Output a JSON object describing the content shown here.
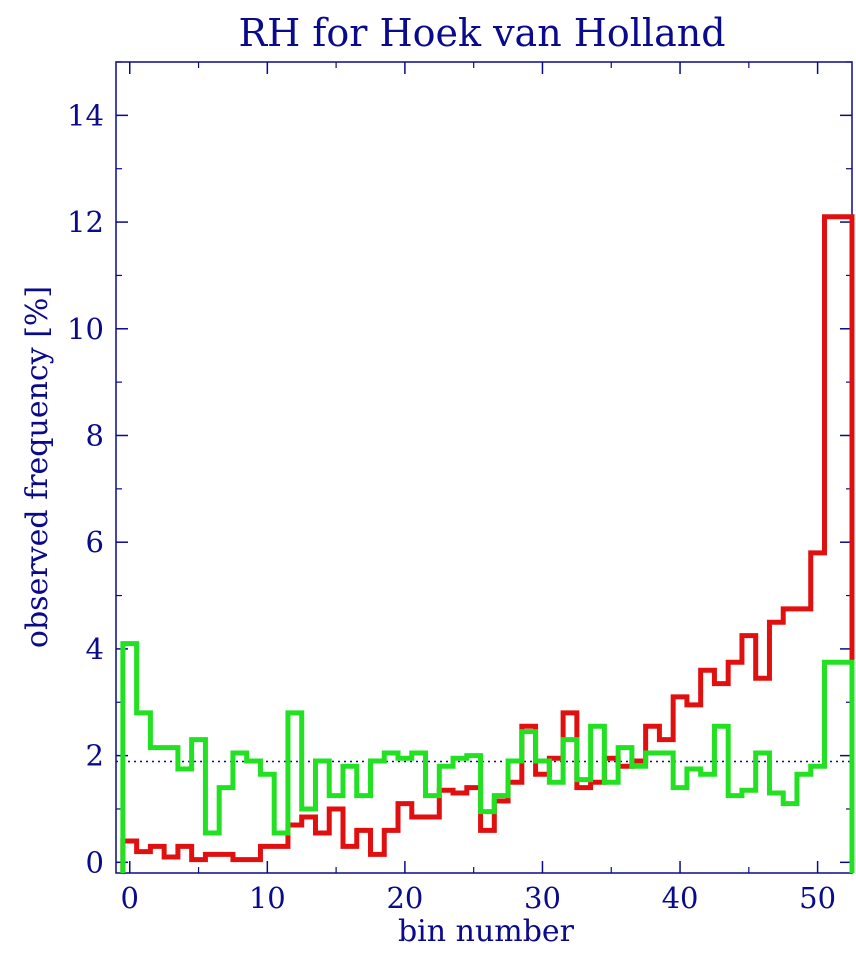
{
  "chart_data": {
    "type": "line",
    "title": "RH for Hoek van Holland",
    "xlabel": "bin number",
    "ylabel": "observed frequency [%]",
    "xlim": [
      -1,
      52.5
    ],
    "ylim": [
      -0.2,
      15
    ],
    "xticks": [
      0,
      10,
      20,
      30,
      40,
      50
    ],
    "yticks": [
      0,
      2,
      4,
      6,
      8,
      10,
      12,
      14
    ],
    "grid": false,
    "legend": false,
    "reference_line": {
      "y": 1.89,
      "style": "dotted",
      "color": "#0a0a8c"
    },
    "series": [
      {
        "color": "#e01010",
        "step": true,
        "x": [
          0,
          1,
          2,
          3,
          4,
          5,
          6,
          7,
          8,
          9,
          10,
          11,
          12,
          13,
          14,
          15,
          16,
          17,
          18,
          19,
          20,
          21,
          22,
          23,
          24,
          25,
          26,
          27,
          28,
          29,
          30,
          31,
          32,
          33,
          34,
          35,
          36,
          37,
          38,
          39,
          40,
          41,
          42,
          43,
          44,
          45,
          46,
          47,
          48,
          49,
          50,
          51,
          52
        ],
        "values": [
          0.4,
          0.2,
          0.3,
          0.1,
          0.3,
          0.05,
          0.15,
          0.15,
          0.05,
          0.05,
          0.3,
          0.3,
          0.7,
          0.85,
          0.55,
          1.0,
          0.3,
          0.6,
          0.15,
          0.6,
          1.1,
          0.85,
          0.85,
          1.35,
          1.3,
          1.4,
          0.6,
          1.15,
          1.5,
          2.55,
          1.65,
          1.95,
          2.8,
          1.4,
          1.5,
          1.95,
          1.8,
          1.9,
          2.55,
          2.3,
          3.1,
          2.95,
          3.6,
          3.35,
          3.75,
          4.25,
          3.45,
          4.5,
          4.75,
          4.75,
          5.8,
          12.1,
          12.1
        ]
      },
      {
        "color": "#22e022",
        "step": true,
        "x": [
          0,
          1,
          2,
          3,
          4,
          5,
          6,
          7,
          8,
          9,
          10,
          11,
          12,
          13,
          14,
          15,
          16,
          17,
          18,
          19,
          20,
          21,
          22,
          23,
          24,
          25,
          26,
          27,
          28,
          29,
          30,
          31,
          32,
          33,
          34,
          35,
          36,
          37,
          38,
          39,
          40,
          41,
          42,
          43,
          44,
          45,
          46,
          47,
          48,
          49,
          50,
          51,
          52
        ],
        "values": [
          4.1,
          2.8,
          2.15,
          2.15,
          1.75,
          2.3,
          0.55,
          1.4,
          2.05,
          1.9,
          1.65,
          0.55,
          2.8,
          1.0,
          1.9,
          1.25,
          1.8,
          1.25,
          1.9,
          2.05,
          1.95,
          2.05,
          1.25,
          1.8,
          1.95,
          2.0,
          0.95,
          1.25,
          1.9,
          2.45,
          1.9,
          1.5,
          2.3,
          1.55,
          2.55,
          1.5,
          2.15,
          1.8,
          2.05,
          2.05,
          1.4,
          1.75,
          1.65,
          2.55,
          1.25,
          1.35,
          2.05,
          1.3,
          1.1,
          1.65,
          1.8,
          3.75,
          3.75
        ]
      }
    ]
  }
}
